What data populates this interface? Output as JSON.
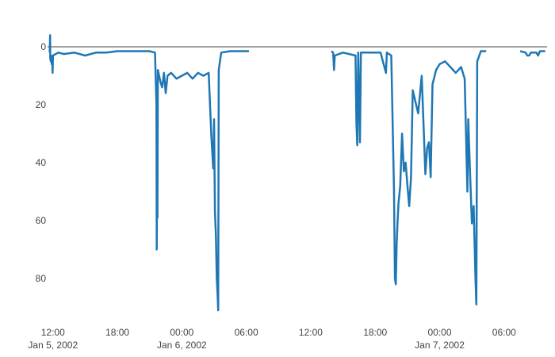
{
  "chart_data": {
    "type": "line",
    "title": "",
    "xlabel": "",
    "ylabel": "",
    "x_range": [
      "2002-01-05 11:30",
      "2002-01-07 10:00"
    ],
    "y_range": [
      0,
      92
    ],
    "y_reversed": true,
    "grid": false,
    "zero_line": true,
    "y_ticks": [
      {
        "value": 0,
        "label": "0"
      },
      {
        "value": 20,
        "label": "20"
      },
      {
        "value": 40,
        "label": "40"
      },
      {
        "value": 60,
        "label": "60"
      },
      {
        "value": 80,
        "label": "80"
      }
    ],
    "x_ticks": [
      {
        "t": "2002-01-05 12:00",
        "label": "12:00",
        "sublabel": "Jan 5, 2002"
      },
      {
        "t": "2002-01-05 18:00",
        "label": "18:00",
        "sublabel": ""
      },
      {
        "t": "2002-01-06 00:00",
        "label": "00:00",
        "sublabel": "Jan 6, 2002"
      },
      {
        "t": "2002-01-06 06:00",
        "label": "06:00",
        "sublabel": ""
      },
      {
        "t": "2002-01-06 12:00",
        "label": "12:00",
        "sublabel": ""
      },
      {
        "t": "2002-01-06 18:00",
        "label": "18:00",
        "sublabel": ""
      },
      {
        "t": "2002-01-07 00:00",
        "label": "00:00",
        "sublabel": "Jan 7, 2002"
      },
      {
        "t": "2002-01-07 06:00",
        "label": "06:00",
        "sublabel": ""
      }
    ],
    "series": [
      {
        "color": "#1f77b4",
        "segments": [
          {
            "points": [
              [
                "2002-01-05 11:42",
                2
              ],
              [
                "2002-01-05 11:44",
                -4
              ],
              [
                "2002-01-05 11:45",
                4
              ],
              [
                "2002-01-05 11:48",
                5
              ],
              [
                "2002-01-05 11:50",
                3
              ],
              [
                "2002-01-05 11:53",
                6
              ],
              [
                "2002-01-05 11:56",
                4
              ],
              [
                "2002-01-05 11:58",
                9
              ],
              [
                "2002-01-05 12:00",
                3
              ],
              [
                "2002-01-05 12:30",
                2
              ],
              [
                "2002-01-05 13:00",
                2.5
              ],
              [
                "2002-01-05 14:00",
                2
              ],
              [
                "2002-01-05 15:00",
                3
              ],
              [
                "2002-01-05 16:00",
                2
              ],
              [
                "2002-01-05 17:00",
                2
              ],
              [
                "2002-01-05 18:00",
                1.5
              ],
              [
                "2002-01-05 19:00",
                1.5
              ],
              [
                "2002-01-05 20:00",
                1.5
              ],
              [
                "2002-01-05 21:00",
                1.5
              ],
              [
                "2002-01-05 21:30",
                2
              ],
              [
                "2002-01-05 21:38",
                20
              ],
              [
                "2002-01-05 21:40",
                70
              ],
              [
                "2002-01-05 21:42",
                45
              ],
              [
                "2002-01-05 21:44",
                59
              ],
              [
                "2002-01-05 21:46",
                8
              ],
              [
                "2002-01-05 22:00",
                12
              ],
              [
                "2002-01-05 22:10",
                14
              ],
              [
                "2002-01-05 22:20",
                9
              ],
              [
                "2002-01-05 22:30",
                16
              ],
              [
                "2002-01-05 22:40",
                10
              ],
              [
                "2002-01-05 23:00",
                9
              ],
              [
                "2002-01-05 23:30",
                11
              ],
              [
                "2002-01-06 00:00",
                10
              ],
              [
                "2002-01-06 00:30",
                9
              ],
              [
                "2002-01-06 01:00",
                11
              ],
              [
                "2002-01-06 01:30",
                9
              ],
              [
                "2002-01-06 02:00",
                10
              ],
              [
                "2002-01-06 02:30",
                9
              ],
              [
                "2002-01-06 02:45",
                31
              ],
              [
                "2002-01-06 02:55",
                42
              ],
              [
                "2002-01-06 03:00",
                25
              ],
              [
                "2002-01-06 03:05",
                57
              ],
              [
                "2002-01-06 03:10",
                65
              ],
              [
                "2002-01-06 03:15",
                80
              ],
              [
                "2002-01-06 03:20",
                86
              ],
              [
                "2002-01-06 03:23",
                91
              ],
              [
                "2002-01-06 03:26",
                8
              ],
              [
                "2002-01-06 03:40",
                2
              ],
              [
                "2002-01-06 04:30",
                1.5
              ],
              [
                "2002-01-06 05:30",
                1.5
              ],
              [
                "2002-01-06 06:15",
                1.5
              ]
            ]
          },
          {
            "points": [
              [
                "2002-01-06 13:55",
                1.5
              ],
              [
                "2002-01-06 14:05",
                2
              ],
              [
                "2002-01-06 14:10",
                8
              ],
              [
                "2002-01-06 14:14",
                3
              ],
              [
                "2002-01-06 15:00",
                2
              ],
              [
                "2002-01-06 16:10",
                3
              ],
              [
                "2002-01-06 16:15",
                26
              ],
              [
                "2002-01-06 16:20",
                34
              ],
              [
                "2002-01-06 16:25",
                2
              ],
              [
                "2002-01-06 16:35",
                33
              ],
              [
                "2002-01-06 16:40",
                2
              ],
              [
                "2002-01-06 17:30",
                2
              ],
              [
                "2002-01-06 18:30",
                2
              ],
              [
                "2002-01-06 19:00",
                9
              ],
              [
                "2002-01-06 19:05",
                2
              ],
              [
                "2002-01-06 19:30",
                3
              ],
              [
                "2002-01-06 19:45",
                49
              ],
              [
                "2002-01-06 19:50",
                80
              ],
              [
                "2002-01-06 19:55",
                82
              ],
              [
                "2002-01-06 20:00",
                68
              ],
              [
                "2002-01-06 20:05",
                60
              ],
              [
                "2002-01-06 20:10",
                54
              ],
              [
                "2002-01-06 20:20",
                48
              ],
              [
                "2002-01-06 20:30",
                30
              ],
              [
                "2002-01-06 20:40",
                43
              ],
              [
                "2002-01-06 20:50",
                40
              ],
              [
                "2002-01-06 21:00",
                48
              ],
              [
                "2002-01-06 21:10",
                55
              ],
              [
                "2002-01-06 21:20",
                45
              ],
              [
                "2002-01-06 21:30",
                15
              ],
              [
                "2002-01-06 22:00",
                23
              ],
              [
                "2002-01-06 22:20",
                10
              ],
              [
                "2002-01-06 22:40",
                44
              ],
              [
                "2002-01-06 22:50",
                35
              ],
              [
                "2002-01-06 23:00",
                33
              ],
              [
                "2002-01-06 23:10",
                45
              ],
              [
                "2002-01-06 23:20",
                13
              ],
              [
                "2002-01-06 23:40",
                8
              ],
              [
                "2002-01-07 00:00",
                6
              ],
              [
                "2002-01-07 00:30",
                5
              ],
              [
                "2002-01-07 01:00",
                7
              ],
              [
                "2002-01-07 01:30",
                9
              ],
              [
                "2002-01-07 02:00",
                7
              ],
              [
                "2002-01-07 02:20",
                11
              ],
              [
                "2002-01-07 02:35",
                50
              ],
              [
                "2002-01-07 02:40",
                25
              ],
              [
                "2002-01-07 02:50",
                44
              ],
              [
                "2002-01-07 03:00",
                61
              ],
              [
                "2002-01-07 03:10",
                55
              ],
              [
                "2002-01-07 03:20",
                80
              ],
              [
                "2002-01-07 03:25",
                89
              ],
              [
                "2002-01-07 03:30",
                5
              ],
              [
                "2002-01-07 03:50",
                1.5
              ],
              [
                "2002-01-07 04:20",
                1.5
              ]
            ]
          },
          {
            "points": [
              [
                "2002-01-07 07:30",
                1.5
              ],
              [
                "2002-01-07 08:00",
                2
              ],
              [
                "2002-01-07 08:10",
                3
              ],
              [
                "2002-01-07 08:20",
                3
              ],
              [
                "2002-01-07 08:30",
                2
              ],
              [
                "2002-01-07 09:00",
                2
              ],
              [
                "2002-01-07 09:10",
                3
              ],
              [
                "2002-01-07 09:20",
                1.5
              ],
              [
                "2002-01-07 09:50",
                1.5
              ]
            ]
          }
        ]
      }
    ]
  }
}
